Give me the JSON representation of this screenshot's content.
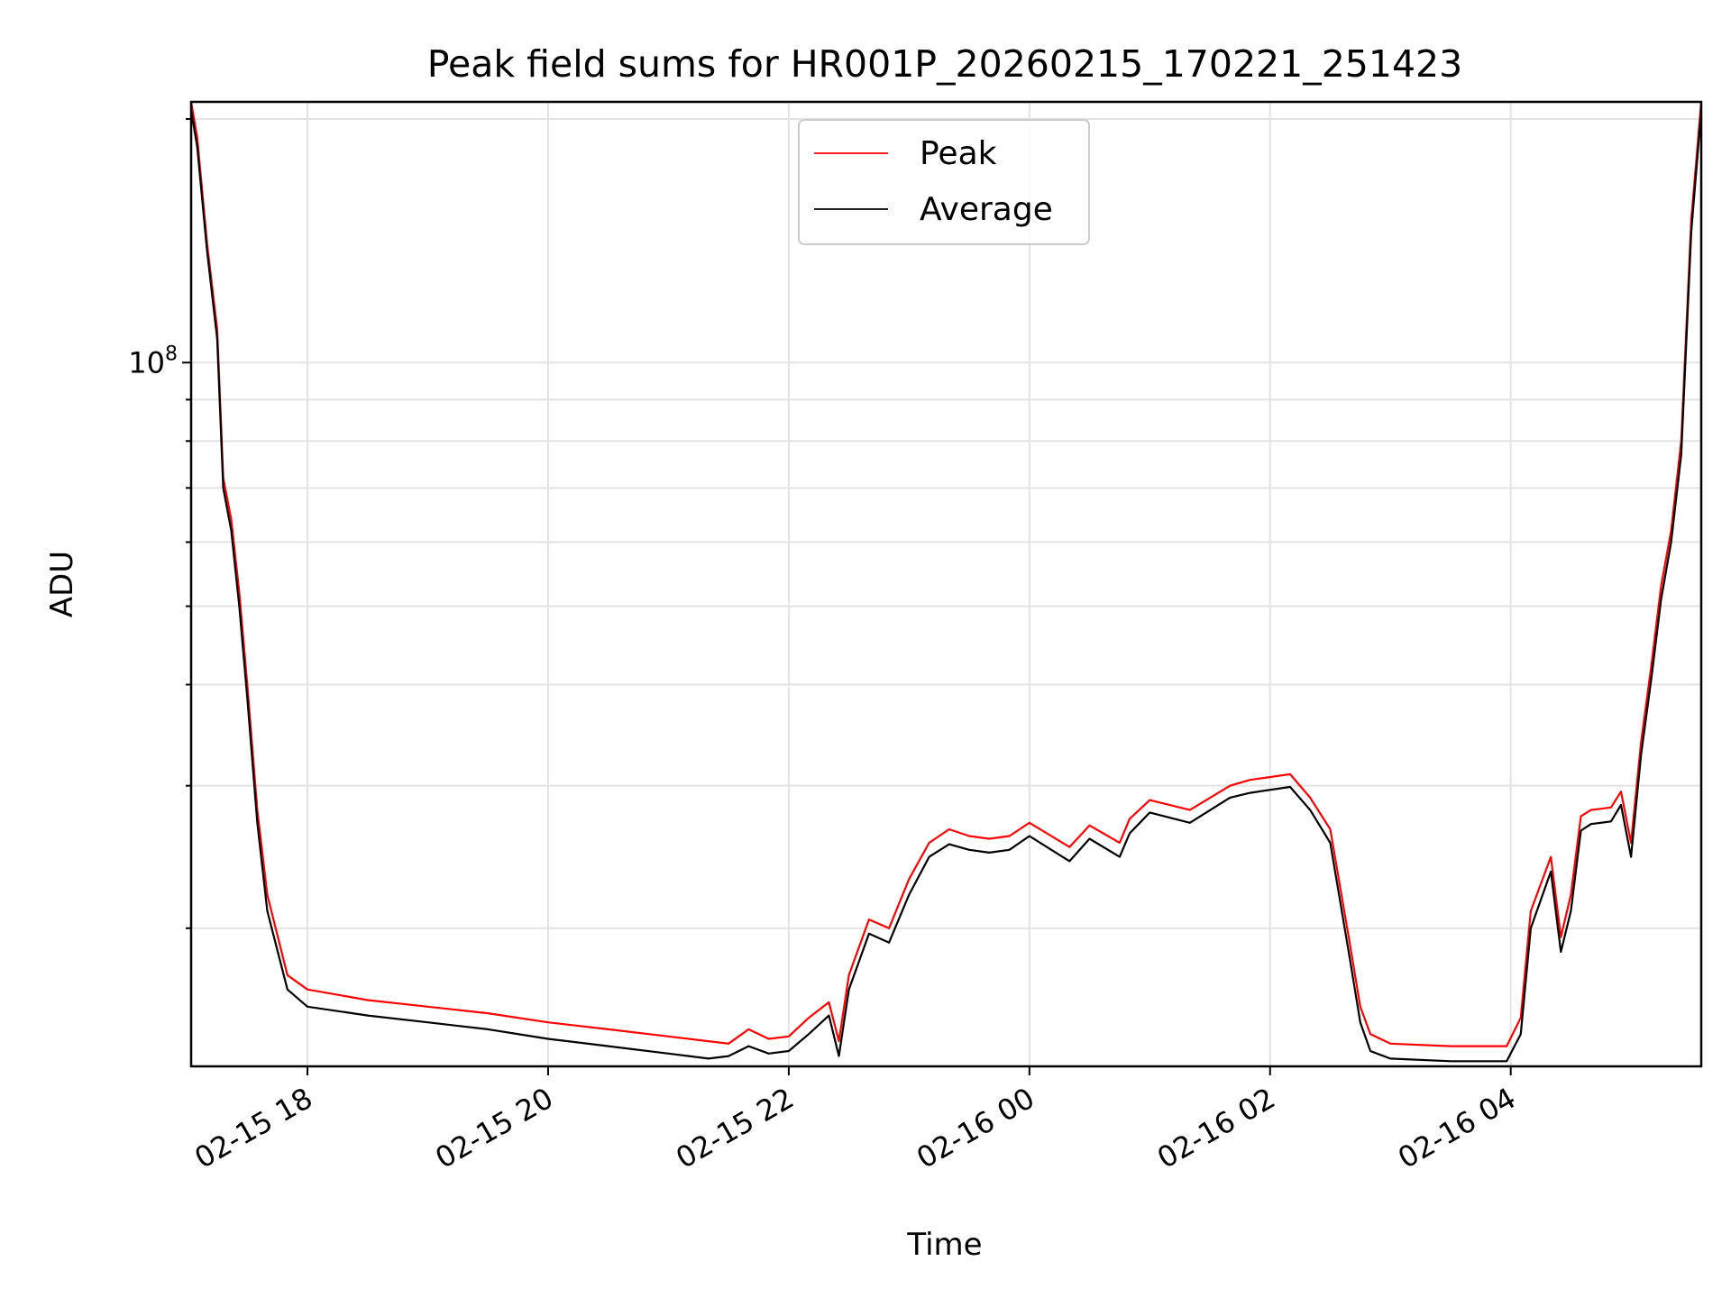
{
  "chart_data": {
    "type": "line",
    "title": "Peak field sums for HR001P_20260215_170221_251423",
    "xlabel": "Time",
    "ylabel": "ADU",
    "yscale": "log",
    "xlim": [
      "2026-02-15 17:02",
      "2026-02-16 05:35"
    ],
    "ylim": [
      13500000,
      210000000
    ],
    "x_ticks": [
      {
        "t": "2026-02-15 18:00",
        "label": "02-15 18"
      },
      {
        "t": "2026-02-15 20:00",
        "label": "02-15 20"
      },
      {
        "t": "2026-02-15 22:00",
        "label": "02-15 22"
      },
      {
        "t": "2026-02-16 00:00",
        "label": "02-16 00"
      },
      {
        "t": "2026-02-16 02:00",
        "label": "02-16 02"
      },
      {
        "t": "2026-02-16 04:00",
        "label": "02-16 04"
      }
    ],
    "y_major_ticks": [
      {
        "value": 100000000,
        "base": "10",
        "exponent": "8"
      }
    ],
    "y_minor_ticks": [
      20000000,
      30000000,
      40000000,
      50000000,
      60000000,
      70000000,
      80000000,
      90000000,
      200000000
    ],
    "grid": true,
    "legend": "upper center",
    "series": [
      {
        "name": "Peak",
        "color": "#ff0000",
        "x": [
          "2026-02-15 17:02",
          "2026-02-15 17:05",
          "2026-02-15 17:10",
          "2026-02-15 17:15",
          "2026-02-15 17:18",
          "2026-02-15 17:22",
          "2026-02-15 17:26",
          "2026-02-15 17:30",
          "2026-02-15 17:35",
          "2026-02-15 17:40",
          "2026-02-15 17:50",
          "2026-02-15 18:00",
          "2026-02-15 18:30",
          "2026-02-15 19:00",
          "2026-02-15 19:30",
          "2026-02-15 20:00",
          "2026-02-15 20:30",
          "2026-02-15 21:00",
          "2026-02-15 21:20",
          "2026-02-15 21:30",
          "2026-02-15 21:40",
          "2026-02-15 21:50",
          "2026-02-15 22:00",
          "2026-02-15 22:10",
          "2026-02-15 22:20",
          "2026-02-15 22:25",
          "2026-02-15 22:30",
          "2026-02-15 22:40",
          "2026-02-15 22:50",
          "2026-02-15 23:00",
          "2026-02-15 23:10",
          "2026-02-15 23:20",
          "2026-02-15 23:30",
          "2026-02-15 23:40",
          "2026-02-15 23:50",
          "2026-02-16 00:00",
          "2026-02-16 00:20",
          "2026-02-16 00:30",
          "2026-02-16 00:45",
          "2026-02-16 00:50",
          "2026-02-16 01:00",
          "2026-02-16 01:20",
          "2026-02-16 01:40",
          "2026-02-16 01:50",
          "2026-02-16 02:10",
          "2026-02-16 02:20",
          "2026-02-16 02:30",
          "2026-02-16 02:40",
          "2026-02-16 02:45",
          "2026-02-16 02:50",
          "2026-02-16 03:00",
          "2026-02-16 03:30",
          "2026-02-16 03:58",
          "2026-02-16 04:05",
          "2026-02-16 04:10",
          "2026-02-16 04:20",
          "2026-02-16 04:25",
          "2026-02-16 04:30",
          "2026-02-16 04:35",
          "2026-02-16 04:40",
          "2026-02-16 04:50",
          "2026-02-16 04:55",
          "2026-02-16 05:00",
          "2026-02-16 05:05",
          "2026-02-16 05:10",
          "2026-02-16 05:15",
          "2026-02-16 05:20",
          "2026-02-16 05:25",
          "2026-02-16 05:30",
          "2026-02-16 05:35"
        ],
        "values": [
          210000000,
          190000000,
          140000000,
          110000000,
          72000000,
          64000000,
          52000000,
          40000000,
          28000000,
          22000000,
          17500000,
          16800000,
          16300000,
          16000000,
          15700000,
          15300000,
          15000000,
          14700000,
          14500000,
          14400000,
          15000000,
          14600000,
          14700000,
          15500000,
          16200000,
          14500000,
          17500000,
          20500000,
          20000000,
          23000000,
          25500000,
          26500000,
          26000000,
          25800000,
          26000000,
          27000000,
          25200000,
          26800000,
          25500000,
          27300000,
          28800000,
          28000000,
          30000000,
          30500000,
          31000000,
          29000000,
          26500000,
          19000000,
          16000000,
          14800000,
          14400000,
          14300000,
          14300000,
          15500000,
          21000000,
          24500000,
          19500000,
          22000000,
          27500000,
          28000000,
          28200000,
          29500000,
          25500000,
          34000000,
          42000000,
          53000000,
          62000000,
          80000000,
          150000000,
          210000000
        ]
      },
      {
        "name": "Average",
        "color": "#000000",
        "x": [
          "2026-02-15 17:02",
          "2026-02-15 17:05",
          "2026-02-15 17:10",
          "2026-02-15 17:15",
          "2026-02-15 17:18",
          "2026-02-15 17:22",
          "2026-02-15 17:26",
          "2026-02-15 17:30",
          "2026-02-15 17:35",
          "2026-02-15 17:40",
          "2026-02-15 17:50",
          "2026-02-15 18:00",
          "2026-02-15 18:30",
          "2026-02-15 19:00",
          "2026-02-15 19:30",
          "2026-02-15 20:00",
          "2026-02-15 20:30",
          "2026-02-15 21:00",
          "2026-02-15 21:20",
          "2026-02-15 21:30",
          "2026-02-15 21:40",
          "2026-02-15 21:50",
          "2026-02-15 22:00",
          "2026-02-15 22:10",
          "2026-02-15 22:20",
          "2026-02-15 22:25",
          "2026-02-15 22:30",
          "2026-02-15 22:40",
          "2026-02-15 22:50",
          "2026-02-15 23:00",
          "2026-02-15 23:10",
          "2026-02-15 23:20",
          "2026-02-15 23:30",
          "2026-02-15 23:40",
          "2026-02-15 23:50",
          "2026-02-16 00:00",
          "2026-02-16 00:20",
          "2026-02-16 00:30",
          "2026-02-16 00:45",
          "2026-02-16 00:50",
          "2026-02-16 01:00",
          "2026-02-16 01:20",
          "2026-02-16 01:40",
          "2026-02-16 01:50",
          "2026-02-16 02:10",
          "2026-02-16 02:20",
          "2026-02-16 02:30",
          "2026-02-16 02:40",
          "2026-02-16 02:45",
          "2026-02-16 02:50",
          "2026-02-16 03:00",
          "2026-02-16 03:30",
          "2026-02-16 03:58",
          "2026-02-16 04:05",
          "2026-02-16 04:10",
          "2026-02-16 04:20",
          "2026-02-16 04:25",
          "2026-02-16 04:30",
          "2026-02-16 04:35",
          "2026-02-16 04:40",
          "2026-02-16 04:50",
          "2026-02-16 04:55",
          "2026-02-16 05:00",
          "2026-02-16 05:05",
          "2026-02-16 05:10",
          "2026-02-16 05:15",
          "2026-02-16 05:20",
          "2026-02-16 05:25",
          "2026-02-16 05:30",
          "2026-02-16 05:35"
        ],
        "values": [
          205000000,
          185000000,
          137000000,
          107000000,
          70000000,
          62000000,
          50000000,
          38500000,
          27000000,
          21000000,
          16800000,
          16000000,
          15600000,
          15300000,
          15000000,
          14600000,
          14300000,
          14000000,
          13800000,
          13900000,
          14300000,
          14000000,
          14100000,
          14800000,
          15600000,
          13900000,
          16800000,
          19700000,
          19200000,
          22000000,
          24500000,
          25400000,
          25000000,
          24800000,
          25000000,
          26000000,
          24200000,
          25800000,
          24500000,
          26200000,
          27800000,
          27000000,
          29000000,
          29400000,
          29900000,
          28000000,
          25500000,
          18200000,
          15300000,
          14100000,
          13800000,
          13700000,
          13700000,
          14800000,
          20000000,
          23500000,
          18700000,
          21000000,
          26400000,
          26900000,
          27100000,
          28400000,
          24500000,
          32800000,
          40500000,
          51000000,
          60000000,
          77000000,
          145000000,
          205000000
        ]
      }
    ]
  }
}
